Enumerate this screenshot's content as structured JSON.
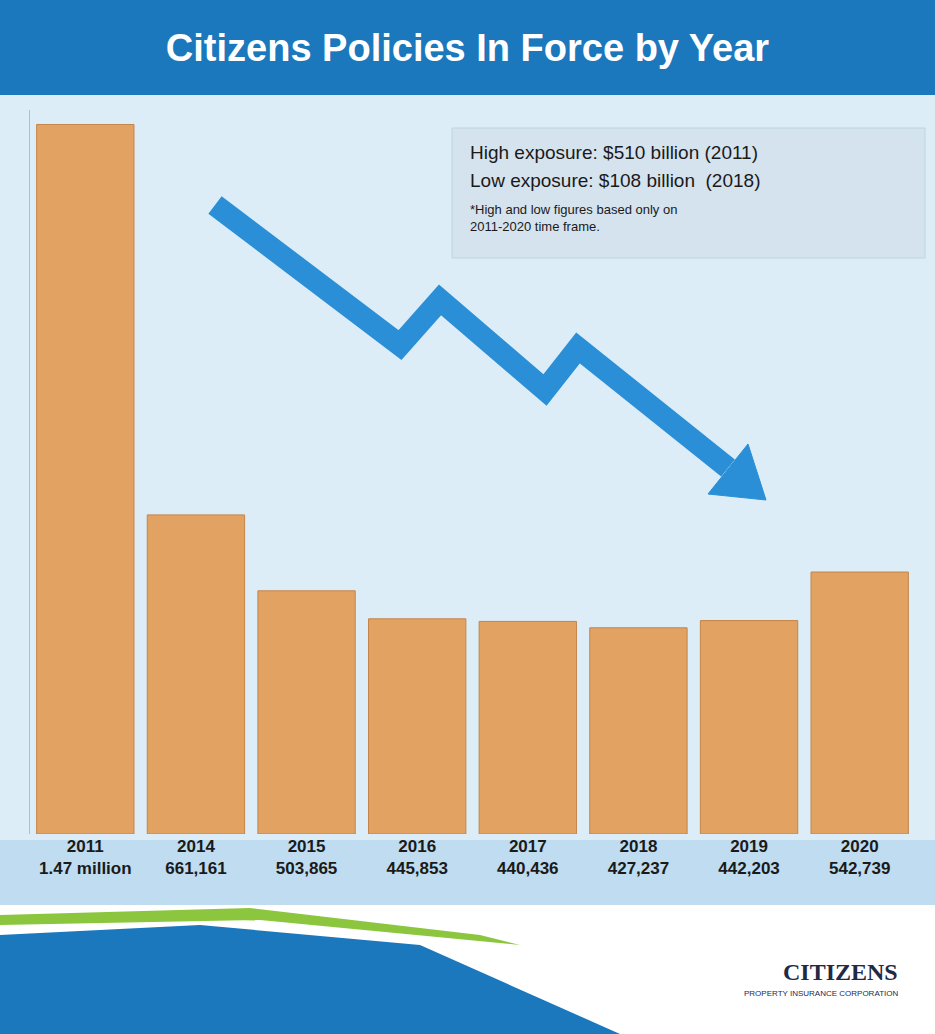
{
  "chart_data": {
    "type": "bar",
    "title": "Citizens Policies In Force by Year",
    "categories": [
      "2011",
      "2014",
      "2015",
      "2016",
      "2017",
      "2018",
      "2019",
      "2020"
    ],
    "values": [
      1470000,
      661161,
      503865,
      445853,
      440436,
      427237,
      442203,
      542739
    ],
    "value_labels": [
      "1.47 million",
      "661,161",
      "503,865",
      "445,853",
      "440,436",
      "427,237",
      "442,203",
      "542,739"
    ],
    "color": "#e2a262",
    "ylim": [
      0,
      1500000
    ],
    "yticks": [],
    "grid": false,
    "data_labels": true,
    "tick_labels": "x",
    "annotations": [
      "High exposure: $510 billion (2011)",
      "Low exposure: $108 billion  (2018)",
      "*High and low figures based only on 2011-2020 time frame."
    ],
    "logo": [
      "CITIZENS",
      "PROPERTY INSURANCE CORPORATION"
    ]
  }
}
